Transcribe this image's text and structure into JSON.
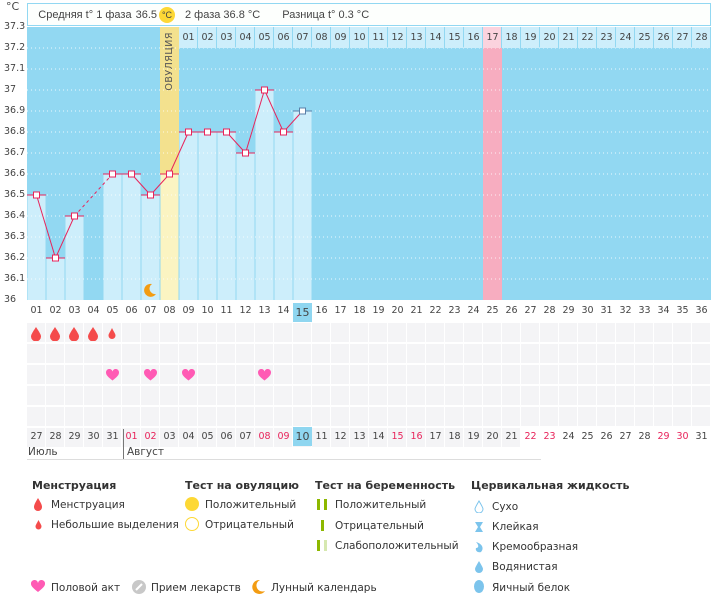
{
  "unit": "°C",
  "header": {
    "phase1_label": "Средняя t° 1 фаза",
    "phase1_value": "36.5",
    "ovulation_badge": "°C",
    "phase2": "2 фаза 36.8 °C",
    "difference": "Разница t° 0.3 °C"
  },
  "ovulation_label": "ОВУЛЯЦИЯ",
  "y_ticks": [
    "37.3",
    "37.2",
    "37.1",
    "37",
    "36.9",
    "36.8",
    "36.7",
    "36.6",
    "36.5",
    "36.4",
    "36.3",
    "36.2",
    "36.1",
    "36"
  ],
  "cycle_days": [
    "01",
    "02",
    "03",
    "04",
    "05",
    "06",
    "07",
    "08",
    "09",
    "10",
    "11",
    "12",
    "13",
    "14",
    "15",
    "16",
    "17",
    "18",
    "19",
    "20",
    "21",
    "22",
    "23",
    "24",
    "25",
    "26",
    "27",
    "28",
    "29",
    "30",
    "31",
    "32",
    "33",
    "34",
    "35",
    "36"
  ],
  "current_cycle_day": "15",
  "phase2_days": [
    "01",
    "02",
    "03",
    "04",
    "05",
    "06",
    "07",
    "08",
    "09",
    "10",
    "11",
    "12",
    "13",
    "14",
    "15",
    "16",
    "17",
    "18",
    "19",
    "20",
    "21",
    "22",
    "23",
    "24",
    "25",
    "26",
    "27",
    "28"
  ],
  "expected_period_phase2_day": "17",
  "ovulation_cycle_day": "08",
  "temperatures": [
    36.5,
    36.2,
    36.4,
    null,
    36.6,
    36.6,
    36.5,
    36.6,
    36.8,
    36.8,
    36.8,
    36.7,
    37.0,
    36.8,
    36.9
  ],
  "menstruation": [
    "heavy",
    "heavy",
    "heavy",
    "heavy",
    "light"
  ],
  "intercourse_days": [
    5,
    7,
    9,
    13
  ],
  "moon_days": [
    7
  ],
  "calendar_dates": [
    "27",
    "28",
    "29",
    "30",
    "31",
    "01",
    "02",
    "03",
    "04",
    "05",
    "06",
    "07",
    "08",
    "09",
    "10",
    "11",
    "12",
    "13",
    "14",
    "15",
    "16",
    "17",
    "18",
    "19",
    "20",
    "21",
    "22",
    "23",
    "24",
    "25",
    "26",
    "27",
    "28",
    "29",
    "30",
    "31"
  ],
  "weekend_indices": [
    5,
    6,
    12,
    13,
    19,
    20,
    26,
    27,
    33,
    34
  ],
  "today_index": 14,
  "months": [
    "Июль",
    "Август"
  ],
  "legend": {
    "menstruation": {
      "title": "Менструация",
      "items": [
        "Менструация",
        "Небольшие выделения"
      ]
    },
    "ovulation_test": {
      "title": "Тест на овуляцию",
      "items": [
        "Положительный",
        "Отрицательный"
      ]
    },
    "pregnancy_test": {
      "title": "Тест на беременность",
      "items": [
        "Положительный",
        "Отрицательный",
        "Слабоположительный"
      ]
    },
    "cervical": {
      "title": "Цервикальная жидкость",
      "items": [
        "Сухо",
        "Клейкая",
        "Кремообразная",
        "Водянистая",
        "Яичный белок"
      ]
    },
    "other": [
      "Половой акт",
      "Прием лекарств",
      "Лунный календарь"
    ]
  },
  "colors": {
    "chart_bg": "#92d8f2",
    "bar": "#cdeefb",
    "line": "#e8245b",
    "ovulation": "#f3e18e",
    "period": "#f7adc0",
    "weekend": "#e8245b",
    "heart": "#ff5ab4",
    "drop": "#f44b4b",
    "moon": "#f39c12"
  }
}
